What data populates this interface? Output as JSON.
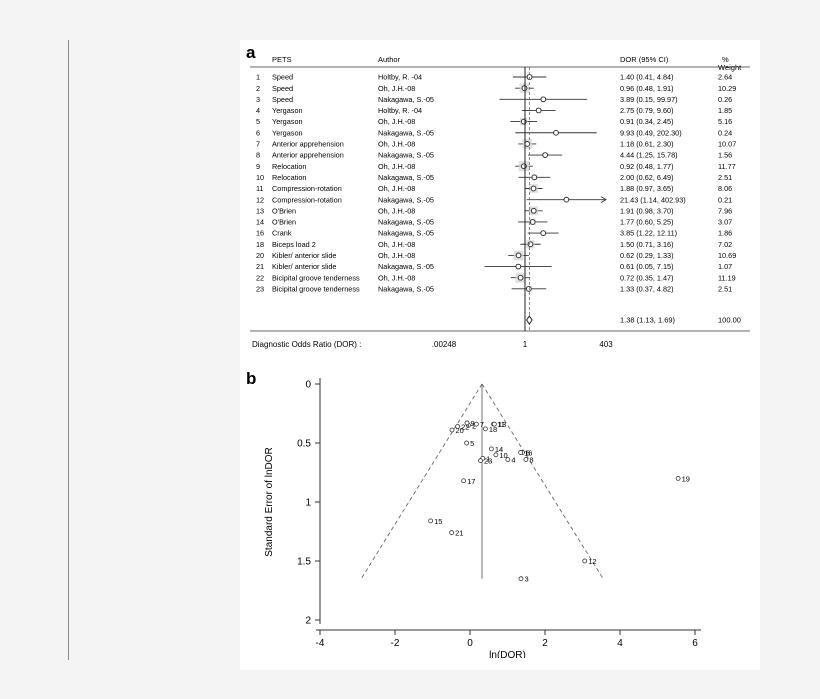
{
  "panel_a": {
    "label": "a",
    "headers": {
      "test": "PETS",
      "author": "Author",
      "dor": "DOR (95% CI)",
      "weight": "%",
      "weight2": "Weight"
    },
    "overall": {
      "dor": 1.38,
      "lo": 1.13,
      "hi": 1.69,
      "text": "1.38 (1.13, 1.69)",
      "weight": "100.00"
    },
    "axis_label": "Diagnostic Odds Ratio (DOR) :",
    "ticks": [
      ".00248",
      "1",
      "403"
    ],
    "tick_values": [
      0.00248,
      1,
      403
    ]
  },
  "chart_data": [
    {
      "type": "forest",
      "x_scale": "log",
      "xlabel": "Diagnostic Odds Ratio (DOR)",
      "columns": [
        "PETS",
        "Author",
        "DOR (95% CI)",
        "% Weight"
      ],
      "rows": [
        {
          "id": "1",
          "test": "Speed",
          "author": "Holtby, R. -04",
          "dor": 1.4,
          "lo": 0.41,
          "hi": 4.84,
          "text": "1.40 (0.41, 4.84)",
          "weight": "2.64"
        },
        {
          "id": "2",
          "test": "Speed",
          "author": "Oh, J.H.-08",
          "dor": 0.96,
          "lo": 0.48,
          "hi": 1.91,
          "text": "0.96 (0.48, 1.91)",
          "weight": "10.29"
        },
        {
          "id": "3",
          "test": "Speed",
          "author": "Nakagawa, S.-05",
          "dor": 3.89,
          "lo": 0.15,
          "hi": 99.97,
          "text": "3.89 (0.15, 99.97)",
          "weight": "0.26"
        },
        {
          "id": "4",
          "test": "Yergason",
          "author": "Holtby, R. -04",
          "dor": 2.75,
          "lo": 0.79,
          "hi": 9.6,
          "text": "2.75 (0.79, 9.60)",
          "weight": "1.85"
        },
        {
          "id": "5",
          "test": "Yergason",
          "author": "Oh, J.H.-08",
          "dor": 0.91,
          "lo": 0.34,
          "hi": 2.45,
          "text": "0.91 (0.34, 2.45)",
          "weight": "5.16"
        },
        {
          "id": "6",
          "test": "Yergason",
          "author": "Nakagawa, S.-05",
          "dor": 9.93,
          "lo": 0.49,
          "hi": 202.3,
          "text": "9.93 (0.49, 202.30)",
          "weight": "0.24"
        },
        {
          "id": "7",
          "test": "Anterior apprehension",
          "author": "Oh, J.H.-08",
          "dor": 1.18,
          "lo": 0.61,
          "hi": 2.3,
          "text": "1.18 (0.61, 2.30)",
          "weight": "10.07"
        },
        {
          "id": "8",
          "test": "Anterior apprehension",
          "author": "Nakagawa, S.-05",
          "dor": 4.44,
          "lo": 1.25,
          "hi": 15.78,
          "text": "4.44 (1.25, 15.78)",
          "weight": "1.56"
        },
        {
          "id": "9",
          "test": "Relocation",
          "author": "Oh, J.H.-08",
          "dor": 0.92,
          "lo": 0.48,
          "hi": 1.77,
          "text": "0.92 (0.48, 1.77)",
          "weight": "11.77"
        },
        {
          "id": "10",
          "test": "Relocation",
          "author": "Nakagawa, S.-05",
          "dor": 2.0,
          "lo": 0.62,
          "hi": 6.49,
          "text": "2.00 (0.62, 6.49)",
          "weight": "2.51"
        },
        {
          "id": "11",
          "test": "Compression-rotation",
          "author": "Oh, J.H.-08",
          "dor": 1.88,
          "lo": 0.97,
          "hi": 3.65,
          "text": "1.88 (0.97, 3.65)",
          "weight": "8.06"
        },
        {
          "id": "12",
          "test": "Compression-rotation",
          "author": "Nakagawa, S.-05",
          "dor": 21.43,
          "lo": 1.14,
          "hi": 402.93,
          "text": "21.43 (1.14, 402.93)",
          "weight": "0.21",
          "arrow": true
        },
        {
          "id": "13",
          "test": "O'Brien",
          "author": "Oh, J.H.-08",
          "dor": 1.91,
          "lo": 0.98,
          "hi": 3.7,
          "text": "1.91 (0.98, 3.70)",
          "weight": "7.96"
        },
        {
          "id": "14",
          "test": "O'Brien",
          "author": "Nakagawa, S.-05",
          "dor": 1.77,
          "lo": 0.6,
          "hi": 5.25,
          "text": "1.77 (0.60, 5.25)",
          "weight": "3.07"
        },
        {
          "id": "16",
          "test": "Crank",
          "author": "Nakagawa, S.-05",
          "dor": 3.85,
          "lo": 1.22,
          "hi": 12.11,
          "text": "3.85 (1.22, 12.11)",
          "weight": "1.86"
        },
        {
          "id": "18",
          "test": "Biceps load 2",
          "author": "Oh, J.H.-08",
          "dor": 1.5,
          "lo": 0.71,
          "hi": 3.16,
          "text": "1.50 (0.71, 3.16)",
          "weight": "7.02"
        },
        {
          "id": "20",
          "test": "Kibler/ anterior slide",
          "author": "Oh, J.H.-08",
          "dor": 0.62,
          "lo": 0.29,
          "hi": 1.33,
          "text": "0.62 (0.29, 1.33)",
          "weight": "10.69"
        },
        {
          "id": "21",
          "test": "Kibler/ anterior slide",
          "author": "Nakagawa, S.-05",
          "dor": 0.61,
          "lo": 0.05,
          "hi": 7.15,
          "text": "0.61 (0.05, 7.15)",
          "weight": "1.07"
        },
        {
          "id": "22",
          "test": "Bicipital groove tenderness",
          "author": "Oh, J.H.-08",
          "dor": 0.72,
          "lo": 0.35,
          "hi": 1.47,
          "text": "0.72 (0.35, 1.47)",
          "weight": "11.19"
        },
        {
          "id": "23",
          "test": "Bicipital groove tenderness",
          "author": "Nakagawa, S.-05",
          "dor": 1.33,
          "lo": 0.37,
          "hi": 4.82,
          "text": "1.33 (0.37, 4.82)",
          "weight": "2.51"
        }
      ]
    },
    {
      "type": "scatter",
      "label": "b",
      "xlabel": "ln(DOR)",
      "ylabel": "Standard Error of lnDOR",
      "xlim": [
        -4,
        6
      ],
      "ylim": [
        0,
        2
      ],
      "y_reversed": true,
      "xticks": [
        -4,
        -2,
        0,
        2,
        4,
        6
      ],
      "yticks": [
        0,
        0.5,
        1,
        1.5,
        2
      ],
      "center_x": 0.32,
      "funnel": {
        "apex": [
          0.32,
          0.0
        ],
        "base_y": 1.65,
        "base_left": -2.9,
        "base_right": 3.55
      },
      "points": [
        {
          "label": "1",
          "x": 0.34,
          "y": 0.63
        },
        {
          "label": "2",
          "x": -0.04,
          "y": 0.35
        },
        {
          "label": "3",
          "x": 1.36,
          "y": 1.65
        },
        {
          "label": "4",
          "x": 1.01,
          "y": 0.64
        },
        {
          "label": "5",
          "x": -0.09,
          "y": 0.5
        },
        {
          "label": "6",
          "x": 1.4,
          "y": 0.58
        },
        {
          "label": "7",
          "x": 0.17,
          "y": 0.34
        },
        {
          "label": "8",
          "x": 1.49,
          "y": 0.64
        },
        {
          "label": "9",
          "x": -0.08,
          "y": 0.33
        },
        {
          "label": "10",
          "x": 0.69,
          "y": 0.6
        },
        {
          "label": "11",
          "x": 0.63,
          "y": 0.34
        },
        {
          "label": "12",
          "x": 3.06,
          "y": 1.5
        },
        {
          "label": "13",
          "x": 0.65,
          "y": 0.34
        },
        {
          "label": "14",
          "x": 0.57,
          "y": 0.55
        },
        {
          "label": "15",
          "x": -1.05,
          "y": 1.16
        },
        {
          "label": "16",
          "x": 1.35,
          "y": 0.58
        },
        {
          "label": "17",
          "x": -0.17,
          "y": 0.82
        },
        {
          "label": "18",
          "x": 0.41,
          "y": 0.38
        },
        {
          "label": "19",
          "x": 5.55,
          "y": 0.8
        },
        {
          "label": "20",
          "x": -0.48,
          "y": 0.39
        },
        {
          "label": "21",
          "x": -0.49,
          "y": 1.26
        },
        {
          "label": "22",
          "x": -0.33,
          "y": 0.36
        },
        {
          "label": "23",
          "x": 0.28,
          "y": 0.65
        }
      ]
    }
  ]
}
